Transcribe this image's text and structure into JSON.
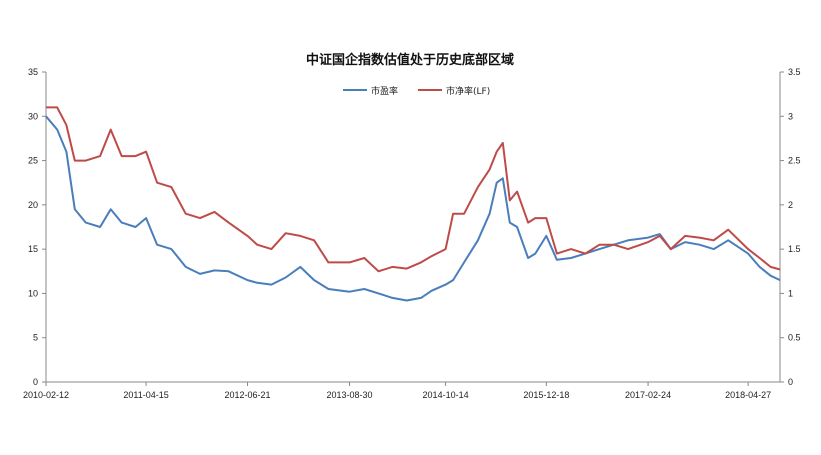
{
  "chart_data": {
    "type": "line",
    "title": "中证国企指数估值处于历史底部区域",
    "xlabel": "",
    "ylabel": "",
    "x_tick_labels": [
      "2010-02-12",
      "2011-04-15",
      "2012-06-21",
      "2013-08-30",
      "2014-10-14",
      "2015-12-18",
      "2017-02-24",
      "2018-04-27"
    ],
    "ylim_left": [
      0,
      35
    ],
    "yticks_left": [
      "0",
      "5",
      "10",
      "15",
      "20",
      "25",
      "30",
      "35"
    ],
    "ylim_right": [
      0,
      3.5
    ],
    "yticks_right": [
      "0",
      "0.5",
      "1",
      "1.5",
      "2",
      "2.5",
      "3",
      "3.5"
    ],
    "grid": false,
    "legend_position": "top-center",
    "series": [
      {
        "name": "市盈率",
        "axis": "left",
        "color": "#4a7ebb",
        "x": [
          "2010-02-12",
          "2010-04-01",
          "2010-05-10",
          "2010-06-15",
          "2010-08-01",
          "2010-10-01",
          "2010-11-15",
          "2011-01-01",
          "2011-03-01",
          "2011-04-15",
          "2011-06-01",
          "2011-08-01",
          "2011-10-01",
          "2011-12-01",
          "2012-02-01",
          "2012-04-01",
          "2012-06-21",
          "2012-08-01",
          "2012-10-01",
          "2012-12-01",
          "2013-02-01",
          "2013-04-01",
          "2013-06-01",
          "2013-08-30",
          "2013-11-01",
          "2014-01-01",
          "2014-03-01",
          "2014-05-01",
          "2014-07-01",
          "2014-08-15",
          "2014-10-14",
          "2014-11-15",
          "2015-01-01",
          "2015-03-01",
          "2015-04-20",
          "2015-05-20",
          "2015-06-15",
          "2015-07-15",
          "2015-08-15",
          "2015-10-01",
          "2015-11-01",
          "2015-12-18",
          "2016-02-01",
          "2016-04-01",
          "2016-06-01",
          "2016-08-01",
          "2016-10-01",
          "2016-12-01",
          "2017-02-24",
          "2017-04-15",
          "2017-06-01",
          "2017-08-01",
          "2017-10-01",
          "2017-12-01",
          "2018-02-01",
          "2018-04-27",
          "2018-06-15",
          "2018-08-01",
          "2018-09-10"
        ],
        "values": [
          30.0,
          28.5,
          26.0,
          19.5,
          18.0,
          17.5,
          19.5,
          18.0,
          17.5,
          18.5,
          15.5,
          15.0,
          13.0,
          12.2,
          12.6,
          12.5,
          11.5,
          11.2,
          11.0,
          11.8,
          13.0,
          11.5,
          10.5,
          10.2,
          10.5,
          10.0,
          9.5,
          9.2,
          9.5,
          10.3,
          11.0,
          11.5,
          13.5,
          16.0,
          19.0,
          22.5,
          23.0,
          18.0,
          17.5,
          14.0,
          14.5,
          16.5,
          13.8,
          14.0,
          14.5,
          15.0,
          15.5,
          16.0,
          16.3,
          16.7,
          15.0,
          15.8,
          15.5,
          15.0,
          16.0,
          14.5,
          13.0,
          12.0,
          11.5
        ]
      },
      {
        "name": "市净率(LF)",
        "axis": "right",
        "color": "#be4b48",
        "x": [
          "2010-02-12",
          "2010-04-01",
          "2010-05-10",
          "2010-06-15",
          "2010-08-01",
          "2010-10-01",
          "2010-11-15",
          "2011-01-01",
          "2011-03-01",
          "2011-04-15",
          "2011-06-01",
          "2011-08-01",
          "2011-10-01",
          "2011-12-01",
          "2012-02-01",
          "2012-04-01",
          "2012-06-21",
          "2012-08-01",
          "2012-10-01",
          "2012-12-01",
          "2013-02-01",
          "2013-04-01",
          "2013-06-01",
          "2013-08-30",
          "2013-11-01",
          "2014-01-01",
          "2014-03-01",
          "2014-05-01",
          "2014-07-01",
          "2014-08-15",
          "2014-10-14",
          "2014-11-15",
          "2015-01-01",
          "2015-03-01",
          "2015-04-20",
          "2015-05-20",
          "2015-06-15",
          "2015-07-15",
          "2015-08-15",
          "2015-10-01",
          "2015-11-01",
          "2015-12-18",
          "2016-02-01",
          "2016-04-01",
          "2016-06-01",
          "2016-08-01",
          "2016-10-01",
          "2016-12-01",
          "2017-02-24",
          "2017-04-15",
          "2017-06-01",
          "2017-08-01",
          "2017-10-01",
          "2017-12-01",
          "2018-02-01",
          "2018-04-27",
          "2018-06-15",
          "2018-08-01",
          "2018-09-10"
        ],
        "values": [
          3.1,
          3.1,
          2.9,
          2.5,
          2.5,
          2.55,
          2.85,
          2.55,
          2.55,
          2.6,
          2.25,
          2.2,
          1.9,
          1.85,
          1.92,
          1.8,
          1.65,
          1.55,
          1.5,
          1.68,
          1.65,
          1.6,
          1.35,
          1.35,
          1.4,
          1.25,
          1.3,
          1.28,
          1.35,
          1.42,
          1.5,
          1.9,
          1.9,
          2.2,
          2.4,
          2.6,
          2.7,
          2.05,
          2.15,
          1.8,
          1.85,
          1.85,
          1.45,
          1.5,
          1.45,
          1.55,
          1.55,
          1.5,
          1.58,
          1.65,
          1.5,
          1.65,
          1.63,
          1.6,
          1.72,
          1.5,
          1.4,
          1.3,
          1.27
        ]
      }
    ]
  }
}
